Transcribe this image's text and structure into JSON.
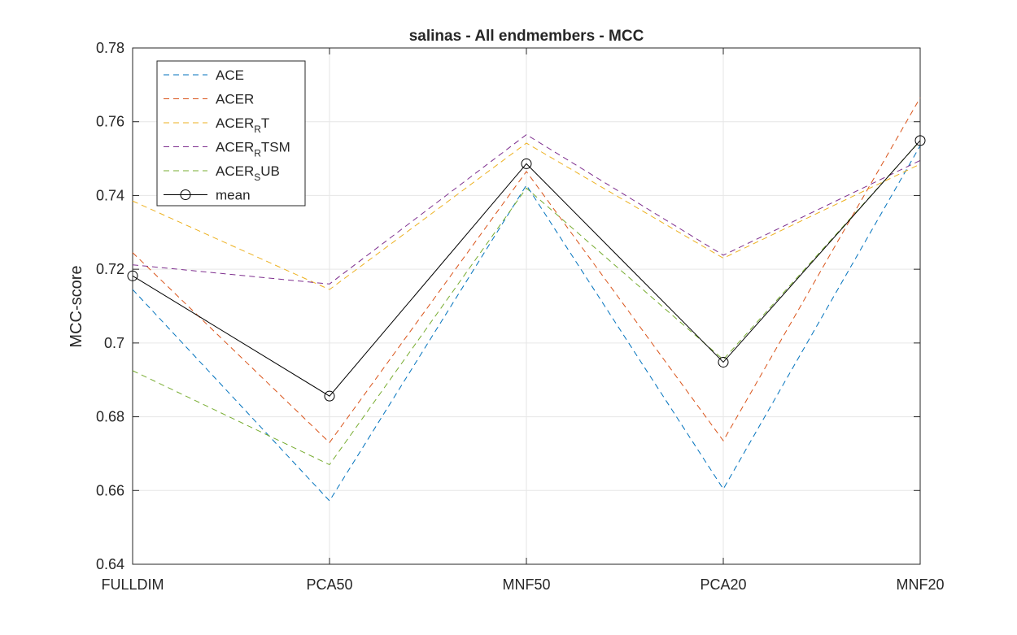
{
  "chart_data": {
    "type": "line",
    "title": "salinas - All endmembers - MCC",
    "xlabel": "",
    "ylabel": "MCC-score",
    "categories": [
      "FULLDIM",
      "PCA50",
      "MNF50",
      "PCA20",
      "MNF20"
    ],
    "ylim": [
      0.64,
      0.78
    ],
    "yticks": [
      "0.64",
      "0.66",
      "0.68",
      "0.7",
      "0.72",
      "0.74",
      "0.76",
      "0.78"
    ],
    "grid": true,
    "legend_position": "top-left",
    "series": [
      {
        "name": "ACE",
        "legend_main": "ACE",
        "legend_sub": "",
        "legend_tail": "",
        "color": "#0072BD",
        "style": "dashed",
        "values": [
          0.7145,
          0.6572,
          0.7428,
          0.6604,
          0.7535
        ]
      },
      {
        "name": "ACER",
        "legend_main": "ACER",
        "legend_sub": "",
        "legend_tail": "",
        "color": "#D95319",
        "style": "dashed",
        "values": [
          0.7245,
          0.673,
          0.7465,
          0.6735,
          0.7665
        ]
      },
      {
        "name": "ACER_RT",
        "legend_main": "ACER",
        "legend_sub": "R",
        "legend_tail": "T",
        "color": "#EDB120",
        "style": "dashed",
        "values": [
          0.7385,
          0.7145,
          0.7542,
          0.723,
          0.7485
        ]
      },
      {
        "name": "ACER_RTSM",
        "legend_main": "ACER",
        "legend_sub": "R",
        "legend_tail": "TSM",
        "color": "#7E2F8E",
        "style": "dashed",
        "values": [
          0.7212,
          0.716,
          0.7565,
          0.7238,
          0.7495
        ]
      },
      {
        "name": "ACER_SUB",
        "legend_main": "ACER",
        "legend_sub": "S",
        "legend_tail": "UB",
        "color": "#77AC30",
        "style": "dashed",
        "values": [
          0.6925,
          0.667,
          0.742,
          0.6955,
          0.7548
        ]
      },
      {
        "name": "mean",
        "legend_main": "mean",
        "legend_sub": "",
        "legend_tail": "",
        "color": "#000000",
        "style": "solid-circle",
        "values": [
          0.7182,
          0.6856,
          0.7486,
          0.6948,
          0.7549
        ]
      }
    ]
  }
}
